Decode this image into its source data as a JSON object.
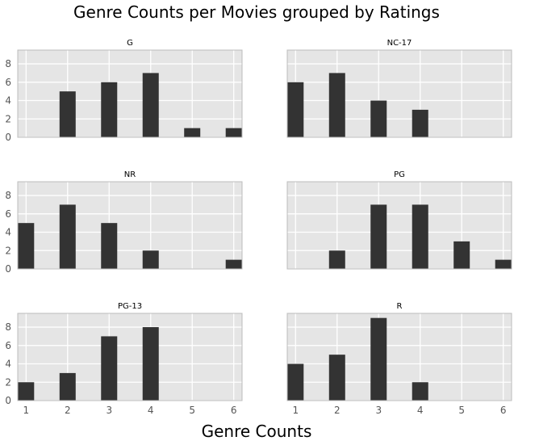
{
  "figure": {
    "title": "Genre Counts per Movies grouped by Ratings",
    "xlabel": "Genre Counts"
  },
  "style": {
    "panel_bg": "#e5e5e5",
    "grid_color": "#ffffff",
    "bar_color": "#333333",
    "frame_color": "#bcbcbc",
    "tick_color": "#555555"
  },
  "chart_data": [
    {
      "type": "bar",
      "title": "G",
      "x": [
        2,
        3,
        4,
        5,
        6
      ],
      "values": [
        5,
        6,
        7,
        1,
        1
      ],
      "xlim": [
        0.8,
        6.2
      ],
      "ylim": [
        0,
        9.5
      ],
      "xticks": [
        1,
        2,
        3,
        4,
        5,
        6
      ],
      "yticks": [
        0,
        2,
        4,
        6,
        8
      ],
      "grid": true
    },
    {
      "type": "bar",
      "title": "NC-17",
      "x": [
        1,
        2,
        3,
        4
      ],
      "values": [
        6,
        7,
        4,
        3
      ],
      "xlim": [
        0.8,
        6.2
      ],
      "ylim": [
        0,
        9.5
      ],
      "xticks": [
        1,
        2,
        3,
        4,
        5,
        6
      ],
      "yticks": [
        0,
        2,
        4,
        6,
        8
      ],
      "grid": true
    },
    {
      "type": "bar",
      "title": "NR",
      "x": [
        1,
        2,
        3,
        4,
        6
      ],
      "values": [
        5,
        7,
        5,
        2,
        1
      ],
      "xlim": [
        0.8,
        6.2
      ],
      "ylim": [
        0,
        9.5
      ],
      "xticks": [
        1,
        2,
        3,
        4,
        5,
        6
      ],
      "yticks": [
        0,
        2,
        4,
        6,
        8
      ],
      "grid": true
    },
    {
      "type": "bar",
      "title": "PG",
      "x": [
        2,
        3,
        4,
        5,
        6
      ],
      "values": [
        2,
        7,
        7,
        3,
        1
      ],
      "xlim": [
        0.8,
        6.2
      ],
      "ylim": [
        0,
        9.5
      ],
      "xticks": [
        1,
        2,
        3,
        4,
        5,
        6
      ],
      "yticks": [
        0,
        2,
        4,
        6,
        8
      ],
      "grid": true
    },
    {
      "type": "bar",
      "title": "PG-13",
      "x": [
        1,
        2,
        3,
        4
      ],
      "values": [
        2,
        3,
        7,
        8
      ],
      "xlim": [
        0.8,
        6.2
      ],
      "ylim": [
        0,
        9.5
      ],
      "xticks": [
        1,
        2,
        3,
        4,
        5,
        6
      ],
      "yticks": [
        0,
        2,
        4,
        6,
        8
      ],
      "grid": true
    },
    {
      "type": "bar",
      "title": "R",
      "x": [
        1,
        2,
        3,
        4
      ],
      "values": [
        4,
        5,
        9,
        2
      ],
      "xlim": [
        0.8,
        6.2
      ],
      "ylim": [
        0,
        9.5
      ],
      "xticks": [
        1,
        2,
        3,
        4,
        5,
        6
      ],
      "yticks": [
        0,
        2,
        4,
        6,
        8
      ],
      "grid": true
    }
  ]
}
